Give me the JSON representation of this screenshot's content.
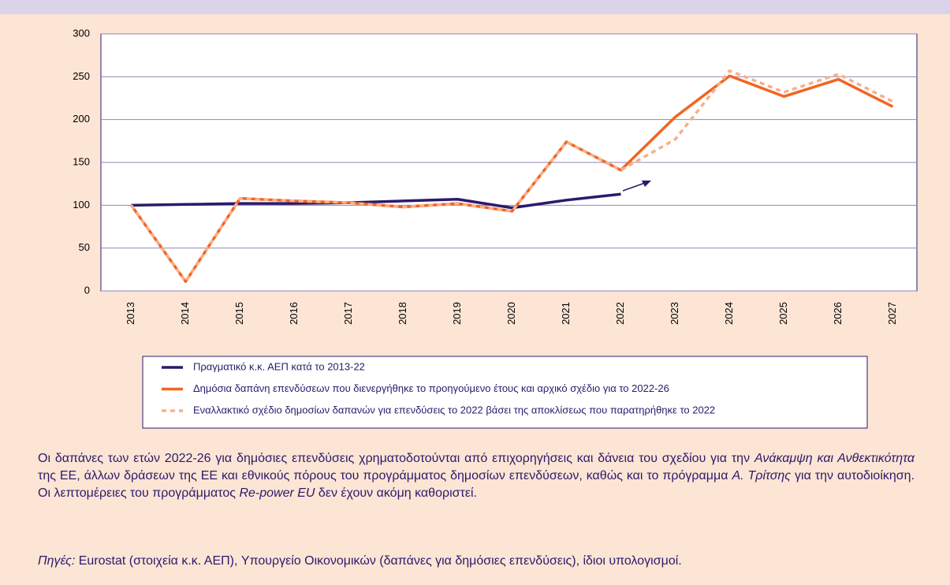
{
  "chart_data": {
    "type": "line",
    "categories": [
      "2013",
      "2014",
      "2015",
      "2016",
      "2017",
      "2018",
      "2019",
      "2020",
      "2021",
      "2022",
      "2023",
      "2024",
      "2025",
      "2026",
      "2027"
    ],
    "series": [
      {
        "name": "Πραγματικό κ.κ. ΑΕΠ κατά το 2013-22",
        "color": "#2b1a6b",
        "dash": false,
        "values": [
          100,
          101,
          102,
          102,
          103,
          105,
          107,
          97,
          106,
          113,
          null,
          null,
          null,
          null,
          null
        ]
      },
      {
        "name": "Δημόσια δαπάνη επενδύσεων που διενεργήθηκε το προηγούμενο έτους και αρχικό σχέδιο για το 2022-26",
        "color": "#f26522",
        "dash": false,
        "values": [
          100,
          11,
          108,
          105,
          103,
          98,
          102,
          93,
          174,
          141,
          203,
          251,
          227,
          247,
          215
        ]
      },
      {
        "name": "Εναλλακτικό σχέδιο δημοσίων δαπανών για επενδύσεις το 2022 βάσει της αποκλίσεως που παρατηρήθηκε το 2022",
        "color": "#f7b08a",
        "dash": true,
        "values": [
          100,
          11,
          108,
          105,
          103,
          98,
          102,
          93,
          174,
          141,
          177,
          257,
          232,
          253,
          221
        ]
      }
    ],
    "ylim": [
      0,
      300
    ],
    "yticks": [
      0,
      50,
      100,
      150,
      200,
      250,
      300
    ],
    "grid": true
  },
  "notes": {
    "text": [
      "Οι δαπάνες των ετών 2022-26 για δημόσιες επενδύσεις χρηματοδοτούνται από επιχορηγήσεις και δάνεια του σχεδίου για την ",
      "Ανάκαμψη και Ανθεκτικότητα",
      " της ΕΕ, άλλων δράσεων της ΕΕ και εθνικούς πόρους του προγράμματος δημοσίων επενδύσεων, καθώς και το πρόγραμμα ",
      "Α. Τρίτσης",
      " για την αυτοδιοίκηση. Οι λεπτομέρειες του προγράμματος ",
      "Re-power EU",
      " δεν έχουν ακόμη καθοριστεί."
    ],
    "sources": [
      "Πηγές:",
      " Eurostat (στοιχεία κ.κ. ΑΕΠ), Υπουργείο Οικονομικών (δαπάνες για δημόσιες επενδύσεις), ίδιοι υπολογισμοί."
    ]
  }
}
